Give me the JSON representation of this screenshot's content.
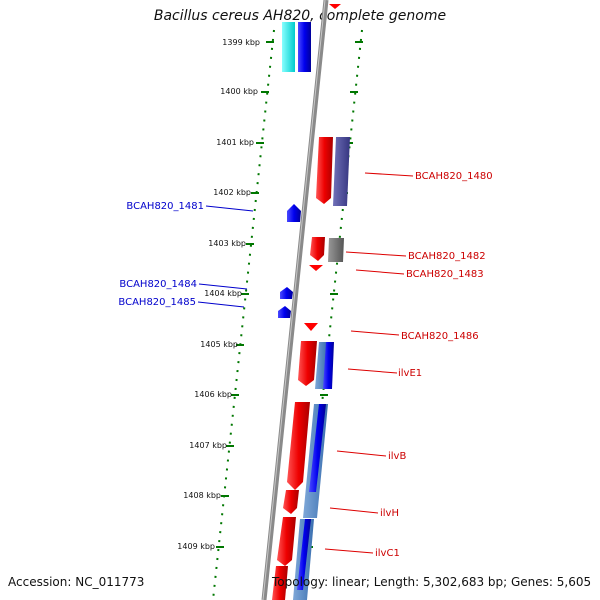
{
  "title": "Bacillus cereus AH820, complete genome",
  "footer": {
    "accession": "Accession: NC_011773",
    "stats": "Topology: linear; Length: 5,302,683 bp; Genes: 5,605"
  },
  "colors": {
    "plus_strand": "#ff0000",
    "minus_strand": "#0000ff",
    "label_red": "#cc0000",
    "label_blue": "#0000cc",
    "backbone": "#888888",
    "kbp_tick": "#007700"
  },
  "map": {
    "kbp_labels": [
      "1399 kbp",
      "1400 kbp",
      "1401 kbp",
      "1402 kbp",
      "1403 kbp",
      "1404 kbp",
      "1405 kbp",
      "1406 kbp",
      "1407 kbp",
      "1408 kbp",
      "1409 kbp"
    ],
    "right_labels": [
      "BCAH820_1480",
      "BCAH820_1482",
      "BCAH820_1483",
      "BCAH820_1486",
      "ilvE1",
      "ilvB",
      "ilvH",
      "ilvC1"
    ],
    "left_labels": [
      "BCAH820_1481",
      "BCAH820_1484",
      "BCAH820_1485"
    ]
  }
}
